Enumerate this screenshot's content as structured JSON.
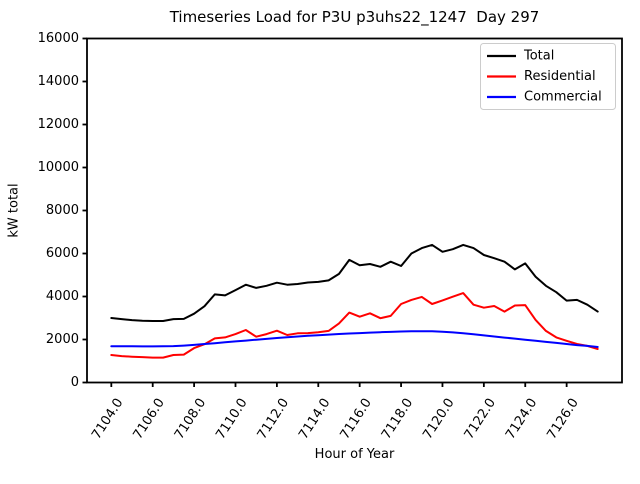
{
  "chart_data": {
    "type": "line",
    "title": "Timeseries Load for P3U p3uhs22_1247  Day 297",
    "xlabel": "Hour of Year",
    "ylabel": "kW total",
    "ylim": [
      0,
      16000
    ],
    "grid": false,
    "legend_position": "upper right",
    "legend_border_color": "#cccccc",
    "axis_color": "#000000",
    "yticks": [
      0,
      2000,
      4000,
      6000,
      8000,
      10000,
      12000,
      14000,
      16000
    ],
    "ytick_labels": [
      "0",
      "2000",
      "4000",
      "6000",
      "8000",
      "10000",
      "12000",
      "14000",
      "16000"
    ],
    "xticks": [
      7104,
      7106,
      7108,
      7110,
      7112,
      7114,
      7116,
      7118,
      7120,
      7122,
      7124,
      7126
    ],
    "xtick_labels": [
      "7104.0",
      "7106.0",
      "7108.0",
      "7110.0",
      "7112.0",
      "7114.0",
      "7116.0",
      "7118.0",
      "7120.0",
      "7122.0",
      "7124.0",
      "7126.0"
    ],
    "x": [
      7104.0,
      7104.5,
      7105.0,
      7105.5,
      7106.0,
      7106.5,
      7107.0,
      7107.5,
      7108.0,
      7108.5,
      7109.0,
      7109.5,
      7110.0,
      7110.5,
      7111.0,
      7111.5,
      7112.0,
      7112.5,
      7113.0,
      7113.5,
      7114.0,
      7114.5,
      7115.0,
      7115.5,
      7116.0,
      7116.5,
      7117.0,
      7117.5,
      7118.0,
      7118.5,
      7119.0,
      7119.5,
      7120.0,
      7120.5,
      7121.0,
      7121.5,
      7122.0,
      7122.5,
      7123.0,
      7123.5,
      7124.0,
      7124.5,
      7125.0,
      7125.5,
      7126.0,
      7126.5,
      7127.0,
      7127.5
    ],
    "series": [
      {
        "name": "Total",
        "color": "#000000",
        "values": [
          3000,
          2950,
          2900,
          2870,
          2860,
          2860,
          2950,
          2960,
          3200,
          3550,
          4100,
          4050,
          4300,
          4550,
          4400,
          4500,
          4640,
          4550,
          4580,
          4650,
          4680,
          4750,
          5050,
          5700,
          5450,
          5510,
          5380,
          5620,
          5420,
          6000,
          6250,
          6400,
          6080,
          6200,
          6400,
          6250,
          5930,
          5780,
          5620,
          5260,
          5540,
          4920,
          4500,
          4200,
          3810,
          3840,
          3620,
          3300
        ]
      },
      {
        "name": "Residential",
        "color": "#ff0000",
        "values": [
          1280,
          1230,
          1200,
          1180,
          1160,
          1160,
          1280,
          1300,
          1600,
          1780,
          2050,
          2100,
          2250,
          2440,
          2130,
          2250,
          2410,
          2210,
          2290,
          2300,
          2340,
          2400,
          2750,
          3250,
          3060,
          3220,
          2990,
          3100,
          3650,
          3840,
          3980,
          3650,
          3820,
          3990,
          4160,
          3620,
          3480,
          3560,
          3300,
          3580,
          3600,
          2910,
          2400,
          2100,
          1940,
          1790,
          1700,
          1560
        ]
      },
      {
        "name": "Commercial",
        "color": "#0000ff",
        "values": [
          1690,
          1690,
          1685,
          1680,
          1680,
          1685,
          1695,
          1715,
          1750,
          1790,
          1830,
          1870,
          1910,
          1950,
          1990,
          2030,
          2070,
          2105,
          2140,
          2170,
          2200,
          2230,
          2255,
          2280,
          2300,
          2320,
          2340,
          2355,
          2370,
          2380,
          2385,
          2380,
          2360,
          2330,
          2290,
          2240,
          2190,
          2140,
          2090,
          2040,
          1990,
          1940,
          1890,
          1840,
          1790,
          1740,
          1700,
          1650
        ]
      }
    ]
  }
}
